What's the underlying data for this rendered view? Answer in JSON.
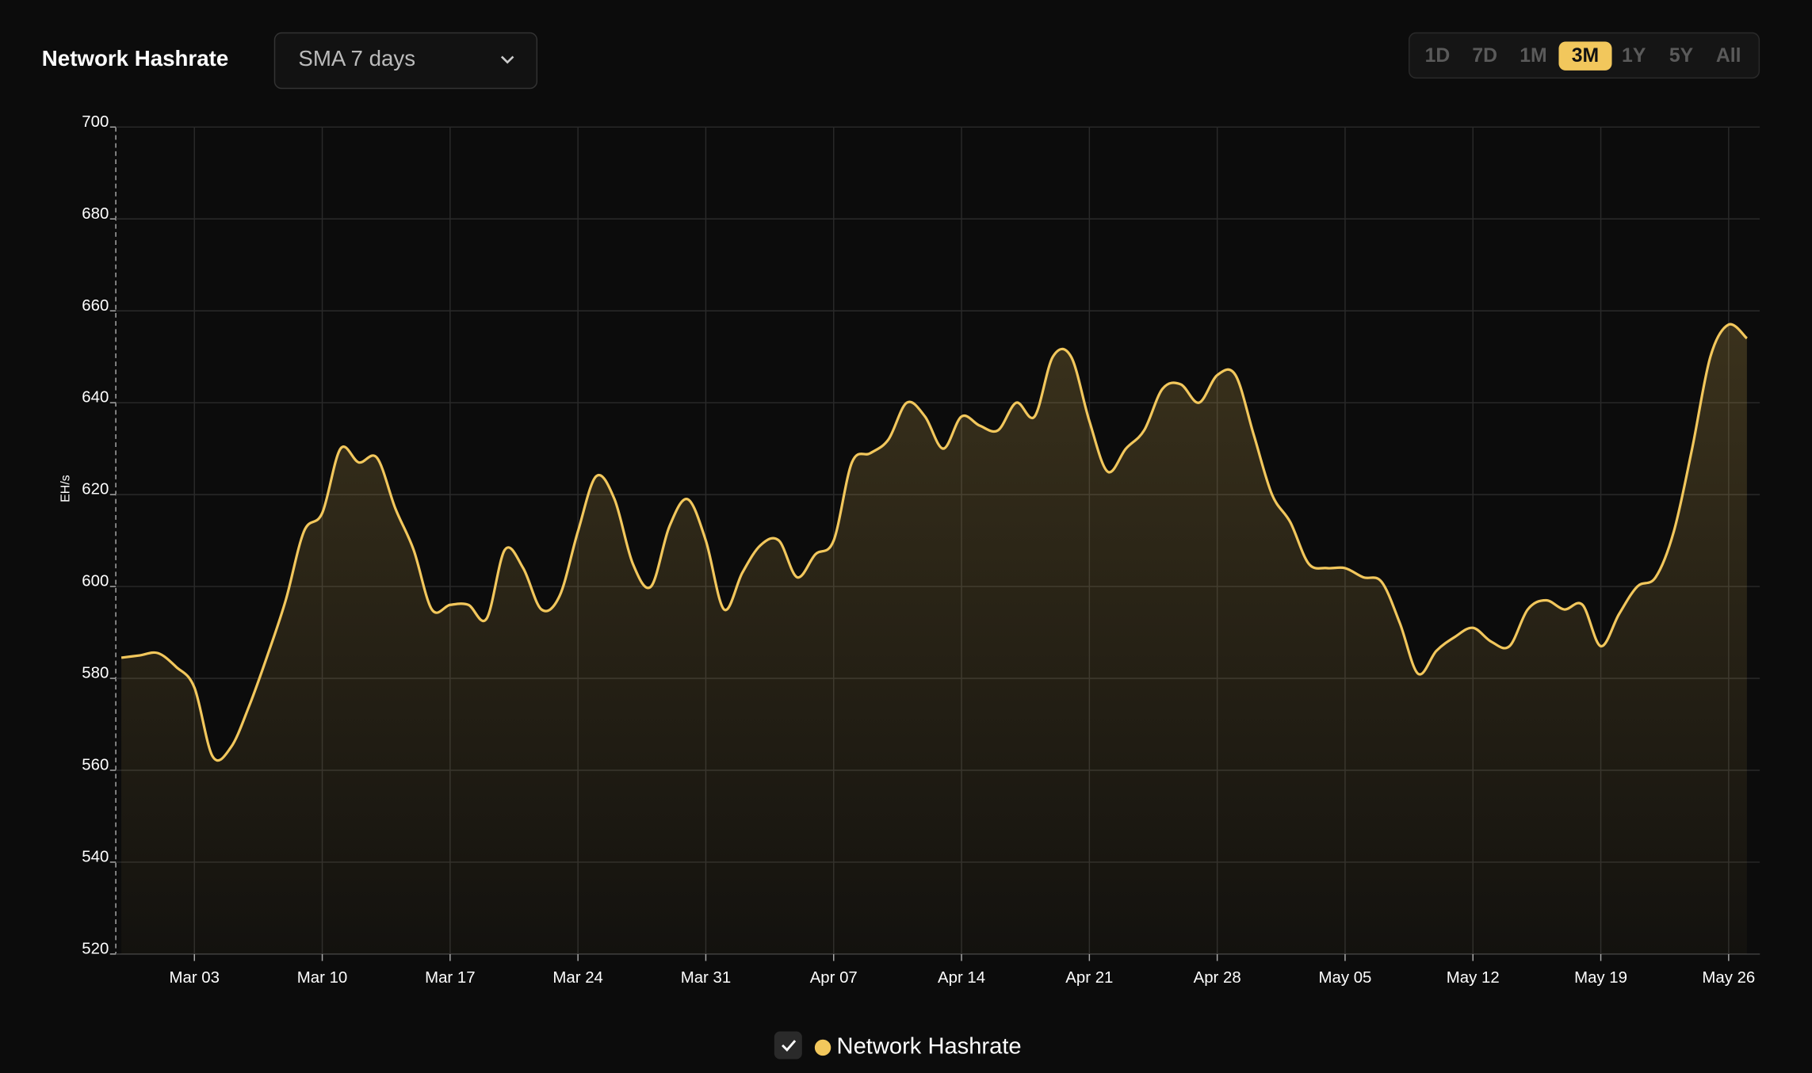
{
  "ui": {
    "selector": "SMA 7 days",
    "ranges": [
      "1D",
      "7D",
      "1M",
      "3M",
      "1Y",
      "5Y",
      "All"
    ],
    "active_range": "3M"
  },
  "chart_data": {
    "type": "area",
    "title": "Network Hashrate",
    "y_label": "EH/s",
    "categories": [
      null,
      null,
      null,
      null,
      "Mar 03",
      null,
      null,
      null,
      null,
      null,
      null,
      "Mar 10",
      null,
      null,
      null,
      null,
      null,
      null,
      "Mar 17",
      null,
      null,
      null,
      null,
      null,
      null,
      "Mar 24",
      null,
      null,
      null,
      null,
      null,
      null,
      "Mar 31",
      null,
      null,
      null,
      null,
      null,
      null,
      "Apr 07",
      null,
      null,
      null,
      null,
      null,
      null,
      "Apr 14",
      null,
      null,
      null,
      null,
      null,
      null,
      "Apr 21",
      null,
      null,
      null,
      null,
      null,
      null,
      "Apr 28",
      null,
      null,
      null,
      null,
      null,
      null,
      "May 05",
      null,
      null,
      null,
      null,
      null,
      null,
      "May 12",
      null,
      null,
      null,
      null,
      null,
      null,
      "May 19",
      null,
      null,
      null,
      null,
      null,
      null,
      "May 26",
      null
    ],
    "series": [
      {
        "name": "Network Hashrate",
        "color": "#f2c75c",
        "values": [
          584.5,
          585,
          585.5,
          582.5,
          578,
          563,
          565,
          574,
          585,
          597,
          612,
          616,
          630,
          627,
          628,
          617,
          608,
          595,
          596,
          596,
          593,
          608,
          604,
          595,
          598,
          612,
          624,
          619,
          605,
          600,
          613,
          619,
          610,
          595,
          603,
          609,
          610,
          602,
          607,
          610,
          627,
          629,
          632,
          640,
          637,
          630,
          637,
          635,
          634,
          640,
          637,
          650,
          650,
          636,
          625,
          630,
          634,
          643,
          644,
          640,
          646,
          646,
          633,
          620,
          614,
          605,
          604,
          604,
          602,
          601,
          592,
          581,
          586,
          589,
          591,
          588,
          587,
          595,
          597,
          595,
          596,
          587,
          594,
          600,
          602,
          612,
          630,
          650,
          657,
          654
        ]
      }
    ],
    "ylim": [
      520,
      700
    ],
    "yticks": [
      520,
      540,
      560,
      580,
      600,
      620,
      640,
      660,
      680,
      700
    ],
    "grid": true,
    "legend": "bottom"
  }
}
